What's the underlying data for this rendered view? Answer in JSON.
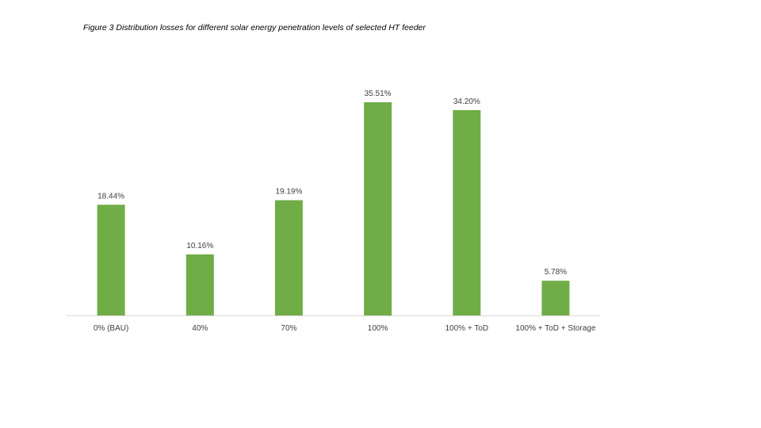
{
  "caption": "Figure 3 Distribution losses for different solar energy penetration levels of selected HT feeder",
  "chart_data": {
    "type": "bar",
    "categories": [
      "0% (BAU)",
      "40%",
      "70%",
      "100%",
      "100% + ToD",
      "100% + ToD + Storage"
    ],
    "values": [
      18.44,
      10.16,
      19.19,
      35.51,
      34.2,
      5.78
    ],
    "value_labels": [
      "18.44%",
      "10.16%",
      "19.19%",
      "35.51%",
      "34.20%",
      "5.78%"
    ],
    "title": "",
    "xlabel": "",
    "ylabel": "",
    "ylim": [
      0,
      40
    ],
    "grid": false,
    "legend": "none",
    "bar_color": "#70AD47"
  }
}
